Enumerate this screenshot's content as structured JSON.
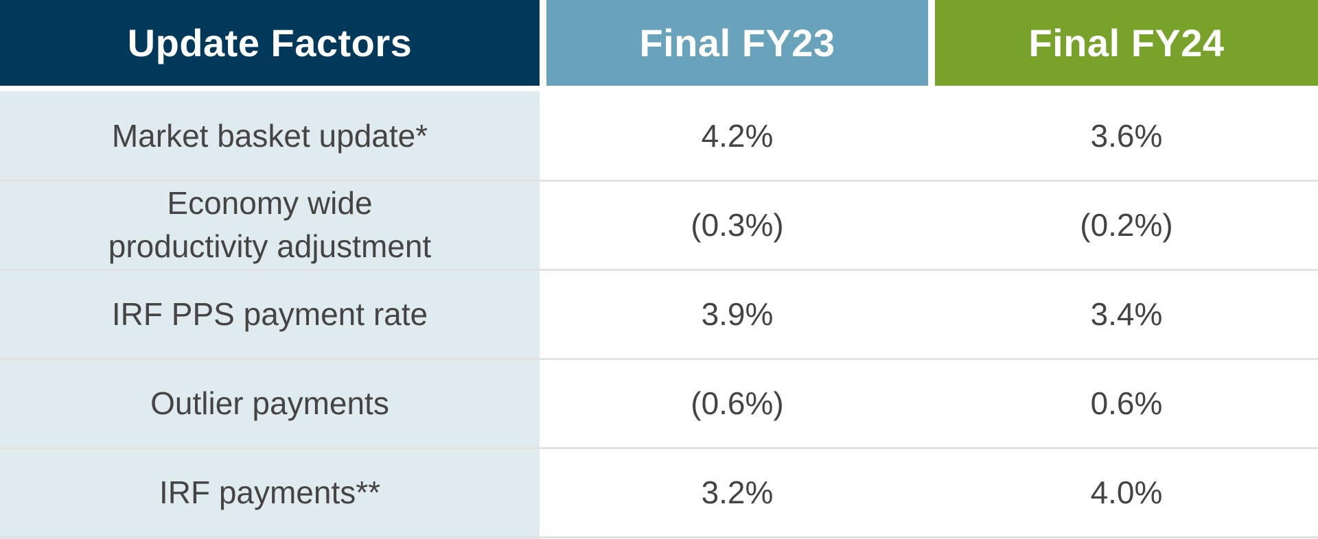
{
  "headers": [
    "Update Factors",
    "Final FY23",
    "Final FY24"
  ],
  "rows": [
    {
      "factor": "Market basket update*",
      "fy23": "4.2%",
      "fy24": "3.6%"
    },
    {
      "factor_lines": [
        "Economy wide",
        "productivity adjustment"
      ],
      "fy23": "(0.3%)",
      "fy24": "(0.2%)"
    },
    {
      "factor": "IRF PPS payment rate",
      "fy23": "3.9%",
      "fy24": "3.4%"
    },
    {
      "factor": "Outlier payments",
      "fy23": "(0.6%)",
      "fy24": "0.6%"
    },
    {
      "factor": "IRF payments**",
      "fy23": "3.2%",
      "fy24": "4.0%"
    }
  ],
  "colors": {
    "header_col1": "#02395b",
    "header_col2": "#69a2bb",
    "header_col3": "#78a22a",
    "label_column_bg": "#e0ebef",
    "text": "#444444"
  }
}
